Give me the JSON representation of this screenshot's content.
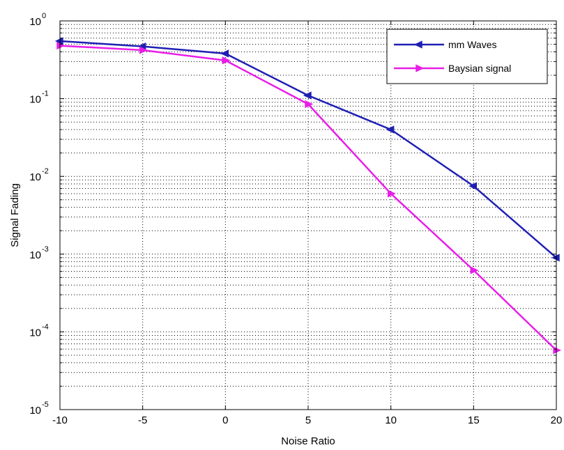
{
  "chart_data": {
    "type": "line",
    "title": "",
    "xlabel": "Noise Ratio",
    "ylabel": "Signal Fading",
    "x": [
      -10,
      -5,
      0,
      5,
      10,
      15,
      20
    ],
    "xlim": [
      -10,
      20
    ],
    "xticks": [
      "-10",
      "-5",
      "0",
      "5",
      "10",
      "15",
      "20"
    ],
    "yscale": "log",
    "ylim": [
      1e-05,
      1
    ],
    "yticks": [
      {
        "base": "10",
        "exp": "0"
      },
      {
        "base": "10",
        "exp": "-1"
      },
      {
        "base": "10",
        "exp": "-2"
      },
      {
        "base": "10",
        "exp": "-3"
      },
      {
        "base": "10",
        "exp": "-4"
      },
      {
        "base": "10",
        "exp": "-5"
      }
    ],
    "grid": true,
    "legend_position": "top-right",
    "series": [
      {
        "name": "mm Waves",
        "color": "#1f1fb4",
        "marker": "triangle-left",
        "values": [
          0.55,
          0.47,
          0.38,
          0.11,
          0.04,
          0.0075,
          0.0009
        ]
      },
      {
        "name": "Baysian signal",
        "color": "#e81ee8",
        "marker": "triangle-right",
        "values": [
          0.48,
          0.42,
          0.31,
          0.085,
          0.006,
          0.00062,
          5.8e-05
        ]
      }
    ]
  }
}
